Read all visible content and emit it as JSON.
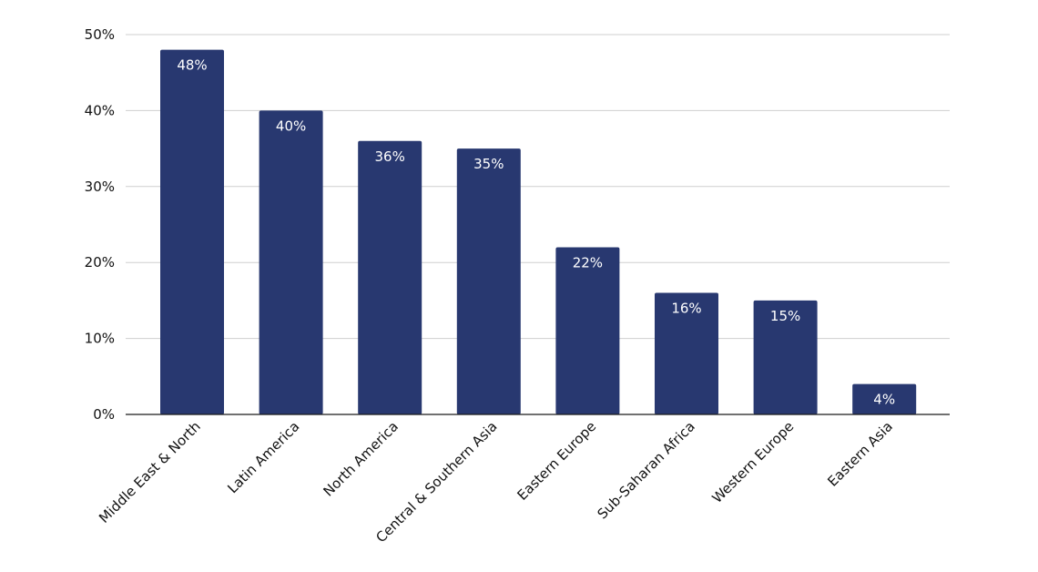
{
  "chart_data": {
    "type": "bar",
    "title": "",
    "xlabel": "",
    "ylabel": "",
    "categories": [
      "Middle East & North",
      "Latin America",
      "North America",
      "Central & Southern Asia",
      "Eastern Europe",
      "Sub-Saharan Africa",
      "Western Europe",
      "Eastern Asia"
    ],
    "values": [
      48,
      40,
      36,
      35,
      22,
      16,
      15,
      4
    ],
    "data_labels": [
      "48%",
      "40%",
      "36%",
      "35%",
      "22%",
      "16%",
      "15%",
      "4%"
    ],
    "ylim": [
      0,
      50
    ],
    "yticks": [
      {
        "value": 0,
        "label": "0%"
      },
      {
        "value": 10,
        "label": "10%"
      },
      {
        "value": 20,
        "label": "20%"
      },
      {
        "value": 30,
        "label": "30%"
      },
      {
        "value": 40,
        "label": "40%"
      },
      {
        "value": 50,
        "label": "50%"
      }
    ],
    "grid": true,
    "legend": "none",
    "bar_color": "#283870"
  }
}
